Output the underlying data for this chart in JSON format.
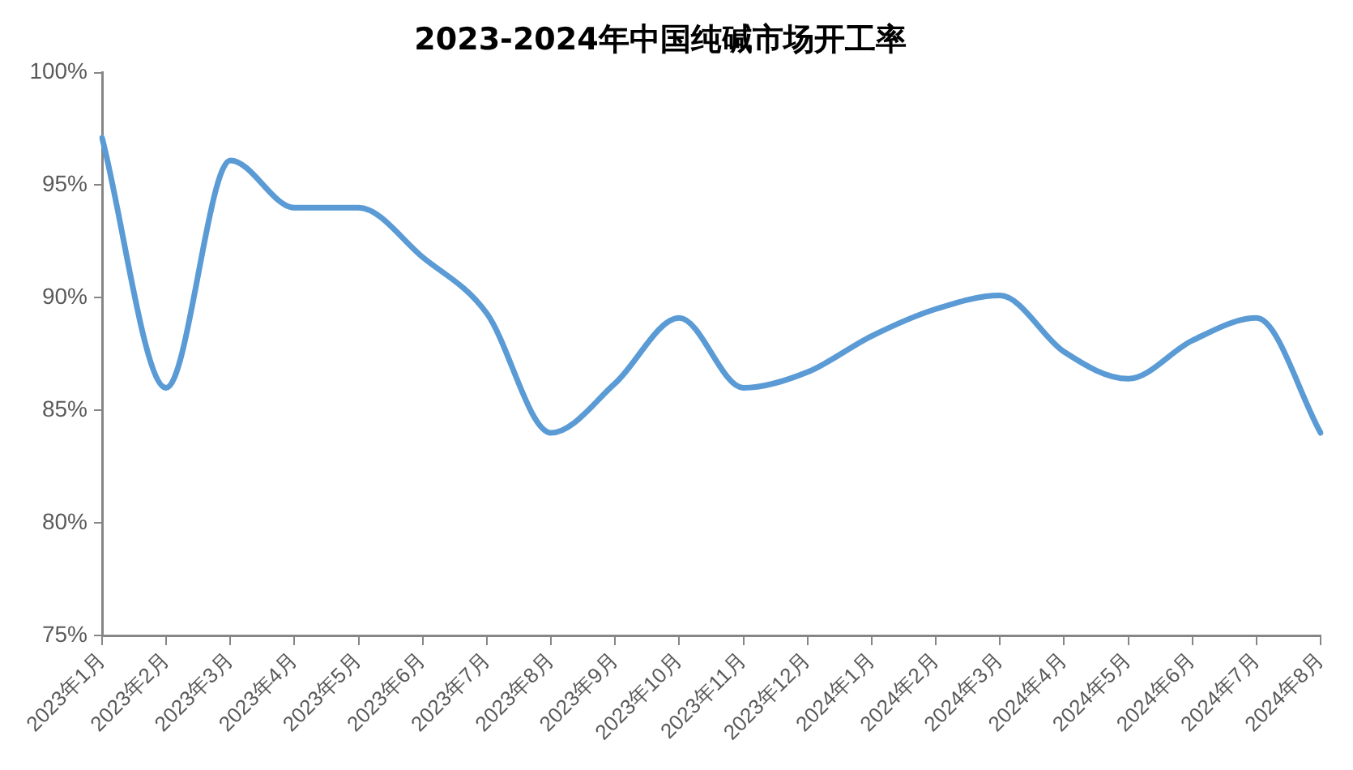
{
  "chart_data": {
    "type": "line",
    "title": "2023-2024年中国纯碱市场开工率",
    "categories": [
      "2023年1月",
      "2023年2月",
      "2023年3月",
      "2023年4月",
      "2023年5月",
      "2023年6月",
      "2023年7月",
      "2023年8月",
      "2023年9月",
      "2023年10月",
      "2023年11月",
      "2023年12月",
      "2024年1月",
      "2024年2月",
      "2024年3月",
      "2024年4月",
      "2024年5月",
      "2024年6月",
      "2024年7月",
      "2024年8月"
    ],
    "values": [
      97.1,
      86.0,
      96.1,
      94.0,
      94.0,
      91.8,
      89.3,
      84.0,
      86.2,
      89.1,
      86.0,
      86.7,
      88.3,
      89.5,
      90.1,
      87.6,
      86.4,
      88.1,
      89.1,
      84.0
    ],
    "color": "#5b9bd5",
    "ylim": [
      75,
      100
    ],
    "yticks": [
      {
        "value": 75,
        "label": "75%"
      },
      {
        "value": 80,
        "label": "80%"
      },
      {
        "value": 85,
        "label": "85%"
      },
      {
        "value": 90,
        "label": "90%"
      },
      {
        "value": 95,
        "label": "95%"
      },
      {
        "value": 100,
        "label": "100%"
      }
    ],
    "marker": "none",
    "line_style": "solid"
  }
}
